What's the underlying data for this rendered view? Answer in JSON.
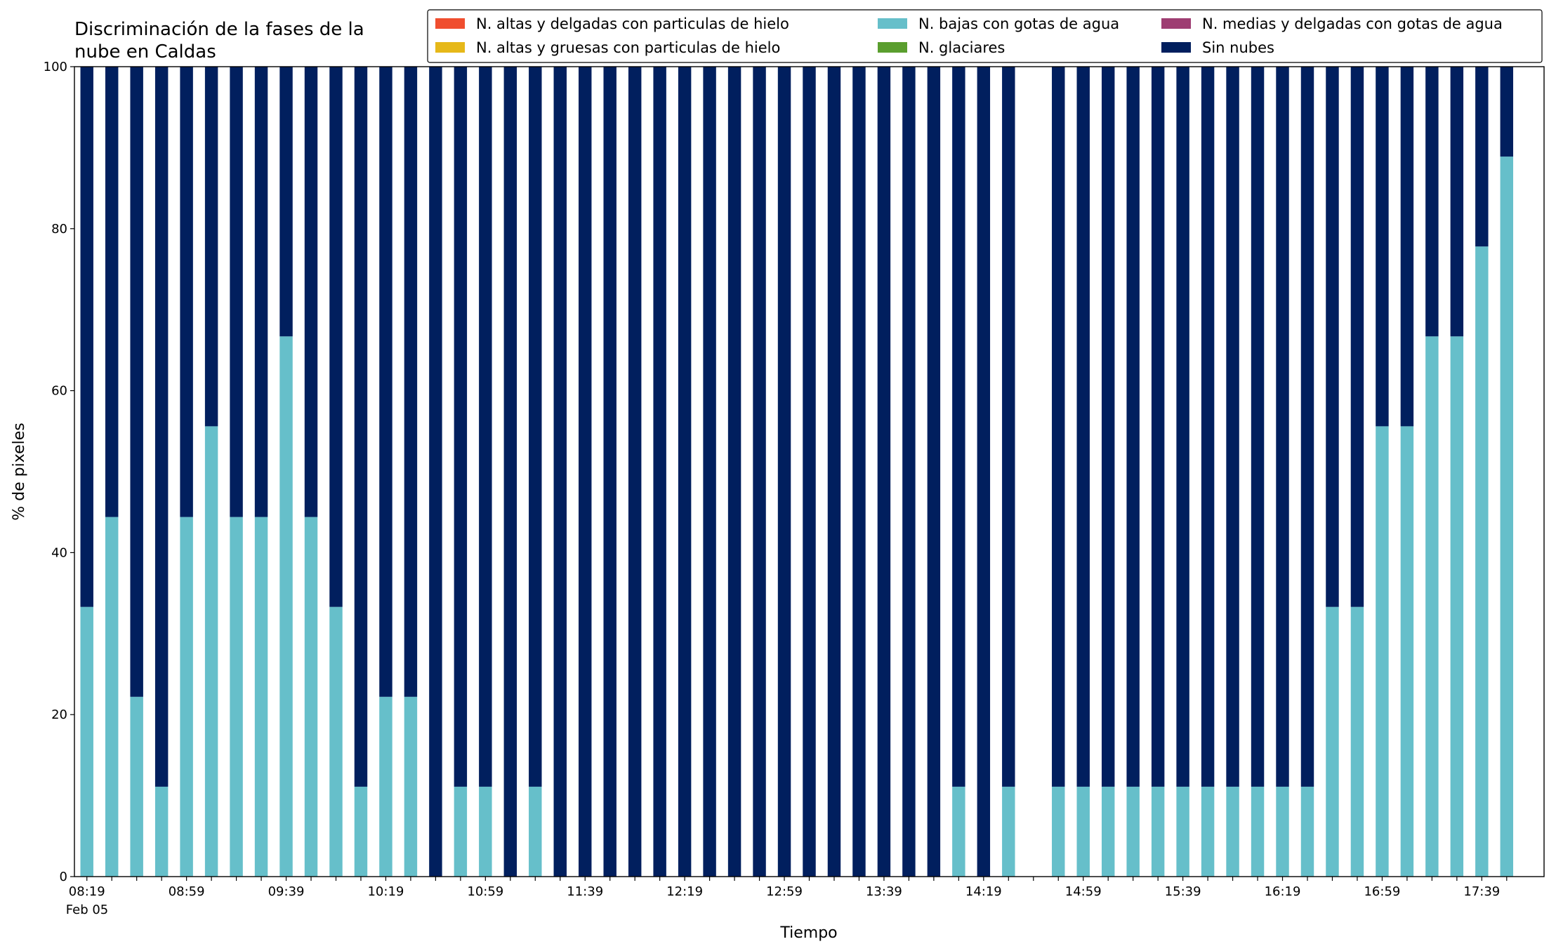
{
  "chart_data": {
    "type": "stacked_bar",
    "title": [
      "Discriminación de la fases de la",
      "nube en Caldas"
    ],
    "x_label": "Tiempo",
    "y_label": "% de pixeles",
    "x_sublabel": "Feb 05",
    "categories": [
      "08:19",
      null,
      null,
      null,
      "08:59",
      null,
      null,
      null,
      "09:39",
      null,
      null,
      null,
      "10:19",
      null,
      null,
      null,
      "10:59",
      null,
      null,
      null,
      "11:39",
      null,
      null,
      null,
      "12:19",
      null,
      null,
      null,
      "12:59",
      null,
      null,
      null,
      "13:39",
      null,
      null,
      null,
      "14:19",
      null,
      null,
      null,
      "14:59",
      null,
      null,
      null,
      "15:39",
      null,
      null,
      null,
      "16:19",
      null,
      null,
      null,
      "16:59",
      null,
      null,
      null,
      "17:39",
      null
    ],
    "ylim": [
      0,
      100
    ],
    "yticks": [
      0,
      20,
      40,
      60,
      80,
      100
    ],
    "legend": "upper right",
    "series": [
      {
        "name": "N. altas y delgadas con particulas de hielo",
        "color": "#f04e2f",
        "values": [
          0,
          0,
          0,
          0,
          0,
          0,
          0,
          0,
          0,
          0,
          0,
          0,
          0,
          0,
          0,
          0,
          0,
          0,
          0,
          0,
          0,
          0,
          0,
          0,
          0,
          0,
          0,
          0,
          0,
          0,
          0,
          0,
          0,
          0,
          0,
          0,
          0,
          0,
          null,
          0,
          0,
          0,
          0,
          0,
          0,
          0,
          0,
          0,
          0,
          0,
          0,
          0,
          0,
          0,
          0,
          0,
          0,
          0
        ]
      },
      {
        "name": "N. altas y gruesas con particulas de hielo",
        "color": "#e6b819",
        "values": [
          0,
          0,
          0,
          0,
          0,
          0,
          0,
          0,
          0,
          0,
          0,
          0,
          0,
          0,
          0,
          0,
          0,
          0,
          0,
          0,
          0,
          0,
          0,
          0,
          0,
          0,
          0,
          0,
          0,
          0,
          0,
          0,
          0,
          0,
          0,
          0,
          0,
          0,
          null,
          0,
          0,
          0,
          0,
          0,
          0,
          0,
          0,
          0,
          0,
          0,
          0,
          0,
          0,
          0,
          0,
          0,
          0,
          0
        ]
      },
      {
        "name": "N. bajas con gotas de agua",
        "color": "#66bfca",
        "values": [
          33.3,
          44.4,
          22.2,
          11.1,
          44.4,
          55.6,
          44.4,
          44.4,
          66.7,
          44.4,
          33.3,
          11.1,
          22.2,
          22.2,
          0,
          11.1,
          11.1,
          0,
          11.1,
          0,
          0,
          0,
          0,
          0,
          0,
          0,
          0,
          0,
          0,
          0,
          0,
          0,
          0,
          0,
          0,
          11.1,
          0,
          11.1,
          null,
          11.1,
          11.1,
          11.1,
          11.1,
          11.1,
          11.1,
          11.1,
          11.1,
          11.1,
          11.1,
          11.1,
          33.3,
          33.3,
          55.6,
          55.6,
          66.7,
          66.7,
          77.8,
          88.9
        ]
      },
      {
        "name": "N. glaciares",
        "color": "#5a9e2e",
        "values": [
          0,
          0,
          0,
          0,
          0,
          0,
          0,
          0,
          0,
          0,
          0,
          0,
          0,
          0,
          0,
          0,
          0,
          0,
          0,
          0,
          0,
          0,
          0,
          0,
          0,
          0,
          0,
          0,
          0,
          0,
          0,
          0,
          0,
          0,
          0,
          0,
          0,
          0,
          null,
          0,
          0,
          0,
          0,
          0,
          0,
          0,
          0,
          0,
          0,
          0,
          0,
          0,
          0,
          0,
          0,
          0,
          0,
          0
        ]
      },
      {
        "name": "N. medias y delgadas con gotas de agua",
        "color": "#9e3d72",
        "values": [
          0,
          0,
          0,
          0,
          0,
          0,
          0,
          0,
          0,
          0,
          0,
          0,
          0,
          0,
          0,
          0,
          0,
          0,
          0,
          0,
          0,
          0,
          0,
          0,
          0,
          0,
          0,
          0,
          0,
          0,
          0,
          0,
          0,
          0,
          0,
          0,
          0,
          0,
          null,
          0,
          0,
          0,
          0,
          0,
          0,
          0,
          0,
          0,
          0,
          0,
          0,
          0,
          0,
          0,
          0,
          0,
          0,
          0
        ]
      },
      {
        "name": "Sin nubes",
        "color": "#011f5e",
        "values": [
          66.7,
          55.6,
          77.8,
          88.9,
          55.6,
          44.4,
          55.6,
          55.6,
          33.3,
          55.6,
          66.7,
          88.9,
          77.8,
          77.8,
          100,
          88.9,
          88.9,
          100,
          88.9,
          100,
          100,
          100,
          100,
          100,
          100,
          100,
          100,
          100,
          100,
          100,
          100,
          100,
          100,
          100,
          100,
          88.9,
          100,
          88.9,
          null,
          88.9,
          88.9,
          88.9,
          88.9,
          88.9,
          88.9,
          88.9,
          88.9,
          88.9,
          88.9,
          88.9,
          66.7,
          66.7,
          44.4,
          44.4,
          33.3,
          33.3,
          22.2,
          11.1
        ]
      }
    ]
  }
}
